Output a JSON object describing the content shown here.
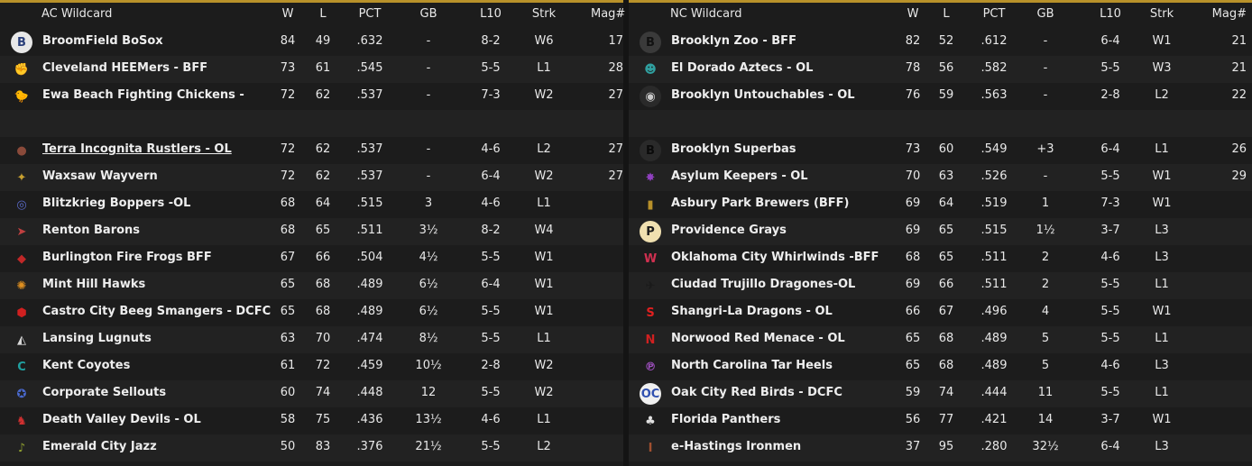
{
  "columns": {
    "w": "W",
    "l": "L",
    "pct": "PCT",
    "gb": "GB",
    "l10": "L10",
    "strk": "Strk",
    "mag": "Mag#"
  },
  "ac": {
    "title": "AC  Wildcard",
    "leaders": [
      {
        "logo": "B",
        "logo_color": "#2a3f7a",
        "logo_bg": "#e8e8e8",
        "name": "BroomField BoSox",
        "w": "84",
        "l": "49",
        "pct": ".632",
        "gb": "-",
        "l10": "8-2",
        "strk": "W6",
        "mag": "17"
      },
      {
        "logo": "✊",
        "logo_color": "#d9a27a",
        "logo_bg": "transparent",
        "name": "Cleveland HEEMers - BFF",
        "w": "73",
        "l": "61",
        "pct": ".545",
        "gb": "-",
        "l10": "5-5",
        "strk": "L1",
        "mag": "28"
      },
      {
        "logo": "🐤",
        "logo_color": "#e0b020",
        "logo_bg": "transparent",
        "name": "Ewa Beach Fighting Chickens -",
        "w": "72",
        "l": "62",
        "pct": ".537",
        "gb": "-",
        "l10": "7-3",
        "strk": "W2",
        "mag": "27"
      }
    ],
    "others": [
      {
        "logo": "●",
        "logo_color": "#8a4a3a",
        "logo_bg": "transparent",
        "name": "Terra Incognita Rustlers - OL",
        "underline": true,
        "w": "72",
        "l": "62",
        "pct": ".537",
        "gb": "-",
        "l10": "4-6",
        "strk": "L2",
        "mag": "27"
      },
      {
        "logo": "✦",
        "logo_color": "#c8a030",
        "logo_bg": "transparent",
        "name": "Waxsaw Wayvern",
        "w": "72",
        "l": "62",
        "pct": ".537",
        "gb": "-",
        "l10": "6-4",
        "strk": "W2",
        "mag": "27"
      },
      {
        "logo": "◎",
        "logo_color": "#5a6ac8",
        "logo_bg": "transparent",
        "name": "Blitzkrieg Boppers -OL",
        "w": "68",
        "l": "64",
        "pct": ".515",
        "gb": "3",
        "l10": "4-6",
        "strk": "L1",
        "mag": ""
      },
      {
        "logo": "➤",
        "logo_color": "#c04040",
        "logo_bg": "transparent",
        "name": "Renton Barons",
        "w": "68",
        "l": "65",
        "pct": ".511",
        "gb": "3½",
        "l10": "8-2",
        "strk": "W4",
        "mag": ""
      },
      {
        "logo": "◆",
        "logo_color": "#c02828",
        "logo_bg": "transparent",
        "name": "Burlington Fire Frogs BFF",
        "w": "67",
        "l": "66",
        "pct": ".504",
        "gb": "4½",
        "l10": "5-5",
        "strk": "W1",
        "mag": ""
      },
      {
        "logo": "✺",
        "logo_color": "#e09020",
        "logo_bg": "transparent",
        "name": "Mint Hill Hawks",
        "w": "65",
        "l": "68",
        "pct": ".489",
        "gb": "6½",
        "l10": "6-4",
        "strk": "W1",
        "mag": ""
      },
      {
        "logo": "⬢",
        "logo_color": "#d02020",
        "logo_bg": "transparent",
        "name": "Castro City Beeg Smangers - DCFC",
        "w": "65",
        "l": "68",
        "pct": ".489",
        "gb": "6½",
        "l10": "5-5",
        "strk": "W1",
        "mag": ""
      },
      {
        "logo": "◭",
        "logo_color": "#d8d8d8",
        "logo_bg": "transparent",
        "name": "Lansing Lugnuts",
        "w": "63",
        "l": "70",
        "pct": ".474",
        "gb": "8½",
        "l10": "5-5",
        "strk": "L1",
        "mag": ""
      },
      {
        "logo": "C",
        "logo_color": "#20a0a0",
        "logo_bg": "transparent",
        "name": "Kent Coyotes",
        "w": "61",
        "l": "72",
        "pct": ".459",
        "gb": "10½",
        "l10": "2-8",
        "strk": "W2",
        "mag": ""
      },
      {
        "logo": "✪",
        "logo_color": "#4a6ad0",
        "logo_bg": "transparent",
        "name": "Corporate Sellouts",
        "w": "60",
        "l": "74",
        "pct": ".448",
        "gb": "12",
        "l10": "5-5",
        "strk": "W2",
        "mag": ""
      },
      {
        "logo": "♞",
        "logo_color": "#d03030",
        "logo_bg": "transparent",
        "name": "Death Valley Devils - OL",
        "w": "58",
        "l": "75",
        "pct": ".436",
        "gb": "13½",
        "l10": "4-6",
        "strk": "L1",
        "mag": ""
      },
      {
        "logo": "♪",
        "logo_color": "#90a030",
        "logo_bg": "transparent",
        "name": "Emerald City Jazz",
        "w": "50",
        "l": "83",
        "pct": ".376",
        "gb": "21½",
        "l10": "5-5",
        "strk": "L2",
        "mag": ""
      }
    ]
  },
  "nc": {
    "title": "NC  Wildcard",
    "leaders": [
      {
        "logo": "B",
        "logo_color": "#111111",
        "logo_bg": "#3a3a3a",
        "name": "Brooklyn Zoo - BFF",
        "w": "82",
        "l": "52",
        "pct": ".612",
        "gb": "-",
        "l10": "6-4",
        "strk": "W1",
        "mag": "21"
      },
      {
        "logo": "☻",
        "logo_color": "#30a0a0",
        "logo_bg": "transparent",
        "name": "El Dorado Aztecs - OL",
        "w": "78",
        "l": "56",
        "pct": ".582",
        "gb": "-",
        "l10": "5-5",
        "strk": "W3",
        "mag": "21"
      },
      {
        "logo": "◉",
        "logo_color": "#c8c8c8",
        "logo_bg": "#2a2a2a",
        "name": "Brooklyn Untouchables - OL",
        "w": "76",
        "l": "59",
        "pct": ".563",
        "gb": "-",
        "l10": "2-8",
        "strk": "L2",
        "mag": "22"
      }
    ],
    "others": [
      {
        "logo": "B",
        "logo_color": "#0a0a0a",
        "logo_bg": "#2a2a2a",
        "name": "Brooklyn Superbas",
        "w": "73",
        "l": "60",
        "pct": ".549",
        "gb": "+3",
        "l10": "6-4",
        "strk": "L1",
        "mag": "26"
      },
      {
        "logo": "✸",
        "logo_color": "#9040c0",
        "logo_bg": "transparent",
        "name": "Asylum Keepers - OL",
        "w": "70",
        "l": "63",
        "pct": ".526",
        "gb": "-",
        "l10": "5-5",
        "strk": "W1",
        "mag": "29"
      },
      {
        "logo": "▮",
        "logo_color": "#b8902a",
        "logo_bg": "transparent",
        "name": "Asbury Park Brewers (BFF)",
        "w": "69",
        "l": "64",
        "pct": ".519",
        "gb": "1",
        "l10": "7-3",
        "strk": "W1",
        "mag": ""
      },
      {
        "logo": "P",
        "logo_color": "#1a1a1a",
        "logo_bg": "#f0e0b0",
        "name": "Providence Grays",
        "w": "69",
        "l": "65",
        "pct": ".515",
        "gb": "1½",
        "l10": "3-7",
        "strk": "L3",
        "mag": ""
      },
      {
        "logo": "W",
        "logo_color": "#d03050",
        "logo_bg": "transparent",
        "name": "Oklahoma City Whirlwinds -BFF",
        "w": "68",
        "l": "65",
        "pct": ".511",
        "gb": "2",
        "l10": "4-6",
        "strk": "L3",
        "mag": ""
      },
      {
        "logo": "✈",
        "logo_color": "#1a1a1a",
        "logo_bg": "transparent",
        "name": "Ciudad Trujillo Dragones-OL",
        "w": "69",
        "l": "66",
        "pct": ".511",
        "gb": "2",
        "l10": "5-5",
        "strk": "L1",
        "mag": ""
      },
      {
        "logo": "S",
        "logo_color": "#e02020",
        "logo_bg": "transparent",
        "name": "Shangri-La Dragons - OL",
        "w": "66",
        "l": "67",
        "pct": ".496",
        "gb": "4",
        "l10": "5-5",
        "strk": "W1",
        "mag": ""
      },
      {
        "logo": "N",
        "logo_color": "#d02020",
        "logo_bg": "transparent",
        "name": "Norwood Red Menace - OL",
        "w": "65",
        "l": "68",
        "pct": ".489",
        "gb": "5",
        "l10": "5-5",
        "strk": "L1",
        "mag": ""
      },
      {
        "logo": "℗",
        "logo_color": "#a050c0",
        "logo_bg": "transparent",
        "name": "North Carolina Tar Heels",
        "w": "65",
        "l": "68",
        "pct": ".489",
        "gb": "5",
        "l10": "4-6",
        "strk": "L3",
        "mag": ""
      },
      {
        "logo": "OC",
        "logo_color": "#3050b0",
        "logo_bg": "#f0f0f0",
        "name": "Oak City Red Birds - DCFC",
        "w": "59",
        "l": "74",
        "pct": ".444",
        "gb": "11",
        "l10": "5-5",
        "strk": "L1",
        "mag": ""
      },
      {
        "logo": "♣",
        "logo_color": "#e0e0e0",
        "logo_bg": "transparent",
        "name": "Florida Panthers",
        "w": "56",
        "l": "77",
        "pct": ".421",
        "gb": "14",
        "l10": "3-7",
        "strk": "W1",
        "mag": ""
      },
      {
        "logo": "I",
        "logo_color": "#a05030",
        "logo_bg": "transparent",
        "name": "e-Hastings Ironmen",
        "w": "37",
        "l": "95",
        "pct": ".280",
        "gb": "32½",
        "l10": "6-4",
        "strk": "L3",
        "mag": ""
      }
    ]
  }
}
